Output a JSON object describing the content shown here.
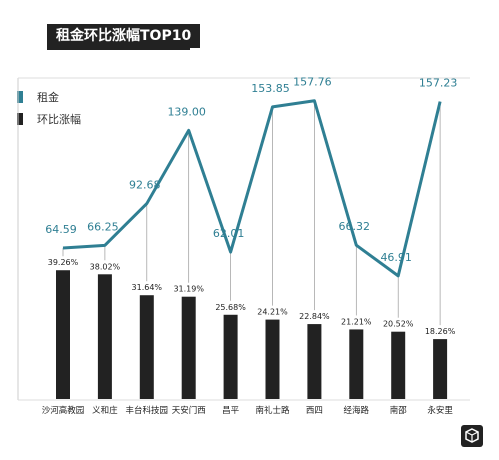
{
  "title": "租金环比涨幅TOP10",
  "legend": {
    "items": [
      {
        "label": "租金",
        "color": "#2f7f93"
      },
      {
        "label": "环比涨幅",
        "color": "#222222"
      }
    ]
  },
  "chart_data": {
    "type": "bar",
    "title": "租金环比涨幅TOP10",
    "categories": [
      "沙河高教园",
      "义和庄",
      "丰台科技园",
      "天安门西",
      "昌平",
      "南礼士路",
      "西四",
      "经海路",
      "南邵",
      "永安里"
    ],
    "series": [
      {
        "name": "租金",
        "type": "line",
        "color": "#2f7f93",
        "values": [
          64.59,
          66.25,
          92.68,
          139.0,
          62.01,
          153.85,
          157.76,
          66.32,
          46.91,
          157.23
        ],
        "labels": [
          "64.59",
          "66.25",
          "92.68",
          "139.00",
          "62.01",
          "153.85",
          "157.76",
          "66.32",
          "46.91",
          "157.23"
        ]
      },
      {
        "name": "环比涨幅",
        "type": "bar",
        "color": "#222222",
        "values": [
          39.26,
          38.02,
          31.64,
          31.19,
          25.68,
          24.21,
          22.84,
          21.21,
          20.52,
          18.26
        ],
        "labels": [
          "39.26%",
          "38.02%",
          "31.64%",
          "31.19%",
          "25.68%",
          "24.21%",
          "22.84%",
          "21.21%",
          "20.52%",
          "18.26%"
        ]
      }
    ],
    "grid": false,
    "legend_position": "top-left"
  }
}
